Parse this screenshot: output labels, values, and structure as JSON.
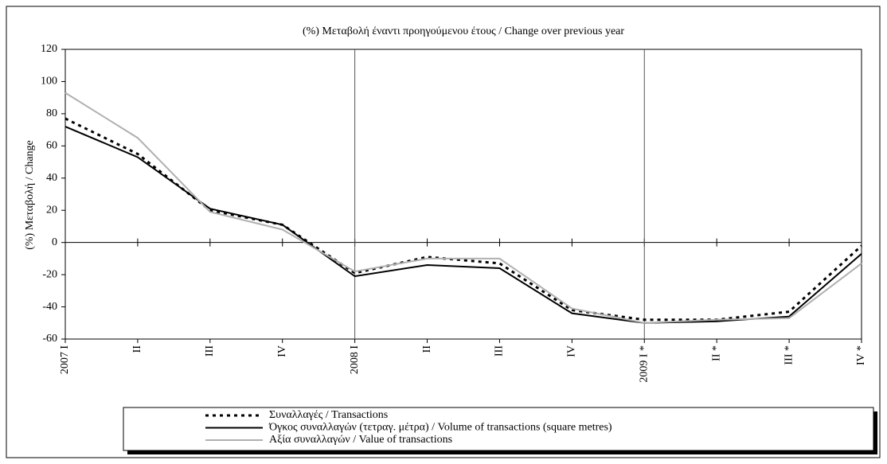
{
  "chart_data": {
    "type": "line",
    "title": "(%) Μεταβολή έναντι προηγούμενου έτους / Change over previous year",
    "y_label": "(%) Μεταβολή / Change",
    "categories": [
      "2007 I",
      "II",
      "III",
      "IV",
      "2008 I",
      "II",
      "III",
      "IV",
      "2009 I *",
      "II *",
      "III *",
      "IV *"
    ],
    "ylim": [
      -60,
      120
    ],
    "yticks": [
      120,
      100,
      80,
      60,
      40,
      20,
      0,
      -20,
      -40,
      -60
    ],
    "series": [
      {
        "name": "Συναλλαγές / Transactions",
        "color": "#000000",
        "style": "dotted",
        "values": [
          77,
          55,
          20,
          11,
          -19,
          -9,
          -13,
          -42,
          -48,
          -48,
          -43,
          -2
        ]
      },
      {
        "name": "Όγκος συναλλαγών (τετραγ. μέτρα) / Volume of transactions (square metres)",
        "color": "#000000",
        "style": "solid",
        "values": [
          72,
          53,
          21,
          11,
          -21,
          -14,
          -16,
          -44,
          -50,
          -49,
          -46,
          -7
        ]
      },
      {
        "name": "Αξία συναλλαγών / Value of transactions",
        "color": "#b0b0b0",
        "style": "solid",
        "values": [
          93,
          65,
          19,
          8,
          -18,
          -10,
          -10,
          -41,
          -50,
          -48,
          -47,
          -13
        ]
      }
    ]
  }
}
